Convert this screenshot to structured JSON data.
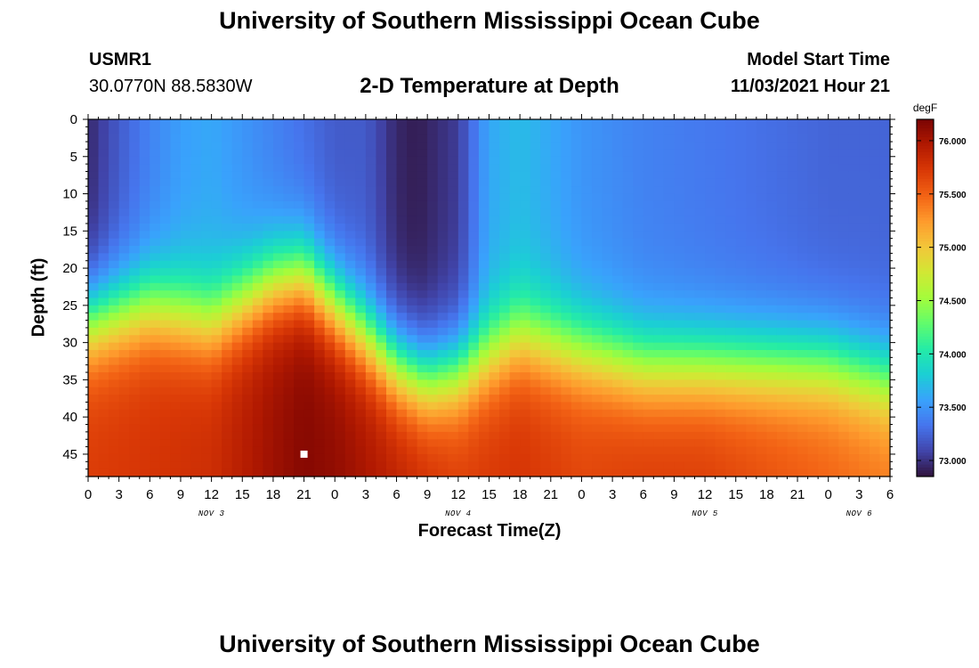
{
  "header": {
    "title": "University of Southern Mississippi Ocean Cube",
    "station_id": "USMR1",
    "coordinates": "30.0770N  88.5830W",
    "subtitle": "2-D Temperature at Depth",
    "model_start_label": "Model Start Time",
    "model_start_value": "11/03/2021 Hour 21"
  },
  "footer": {
    "title": "University of Southern Mississippi Ocean Cube"
  },
  "colors": {
    "scale": [
      "#30123b",
      "#4145ab",
      "#4675ed",
      "#39a2fc",
      "#1bcfd4",
      "#24eca6",
      "#61fc6c",
      "#a4fc3b",
      "#d1e834",
      "#f3c63a",
      "#fe9b2d",
      "#f36315",
      "#d93806",
      "#b11901",
      "#7a0403"
    ],
    "marker": "#ffffff"
  },
  "chart_data": {
    "type": "heatmap",
    "title": "2-D Temperature at Depth",
    "xlabel": "Forecast Time(Z)",
    "ylabel": "Depth (ft)",
    "x_tick_labels": [
      "0",
      "3",
      "6",
      "9",
      "12",
      "15",
      "18",
      "21",
      "0",
      "3",
      "6",
      "9",
      "12",
      "15",
      "18",
      "21",
      "0",
      "3",
      "6",
      "9",
      "12",
      "15",
      "18",
      "21",
      "0",
      "3",
      "6"
    ],
    "x_hours_range": [
      0,
      78
    ],
    "date_labels": [
      {
        "label": "NOV 3",
        "hour": 12
      },
      {
        "label": "NOV 4",
        "hour": 36
      },
      {
        "label": "NOV 5",
        "hour": 60
      },
      {
        "label": "NOV 6",
        "hour": 75
      }
    ],
    "y_ticks": [
      0,
      5,
      10,
      15,
      20,
      25,
      30,
      35,
      40,
      45
    ],
    "ylim": [
      0,
      48
    ],
    "y_inverted": true,
    "colorbar": {
      "unit": "degF",
      "range": [
        72.85,
        76.2
      ],
      "ticks": [
        "73.000",
        "73.500",
        "74.000",
        "74.500",
        "75.000",
        "75.500",
        "76.000"
      ],
      "tick_values": [
        73.0,
        73.5,
        74.0,
        74.5,
        75.0,
        75.5,
        76.0
      ]
    },
    "thermocline_depth_ft": {
      "hours": [
        0,
        6,
        12,
        18,
        21,
        24,
        30,
        33,
        36,
        42,
        48,
        54,
        60,
        66,
        72,
        78
      ],
      "values": [
        27,
        25,
        27,
        22,
        21,
        25,
        33,
        35,
        34,
        29,
        31,
        33,
        33,
        33,
        33,
        35
      ]
    },
    "surface_temp_degF": {
      "hours": [
        0,
        3,
        6,
        9,
        12,
        15,
        18,
        21,
        24,
        27,
        30,
        32,
        36,
        39,
        42,
        48,
        54,
        60,
        66,
        72,
        78
      ],
      "values": [
        72.95,
        73.2,
        73.4,
        73.55,
        73.6,
        73.5,
        73.4,
        73.3,
        73.2,
        73.2,
        72.95,
        72.9,
        73.05,
        73.6,
        73.7,
        73.5,
        73.4,
        73.35,
        73.3,
        73.25,
        73.25
      ]
    },
    "bottom_temp_degF": {
      "hours": [
        0,
        12,
        18,
        21,
        24,
        30,
        36,
        42,
        48,
        54,
        60,
        66,
        72,
        78
      ],
      "values": [
        75.7,
        75.8,
        76.05,
        76.15,
        76.1,
        75.9,
        75.7,
        75.75,
        75.65,
        75.7,
        75.7,
        75.6,
        75.5,
        75.4
      ]
    },
    "marker": {
      "hour": 21,
      "depth_ft": 45
    }
  }
}
